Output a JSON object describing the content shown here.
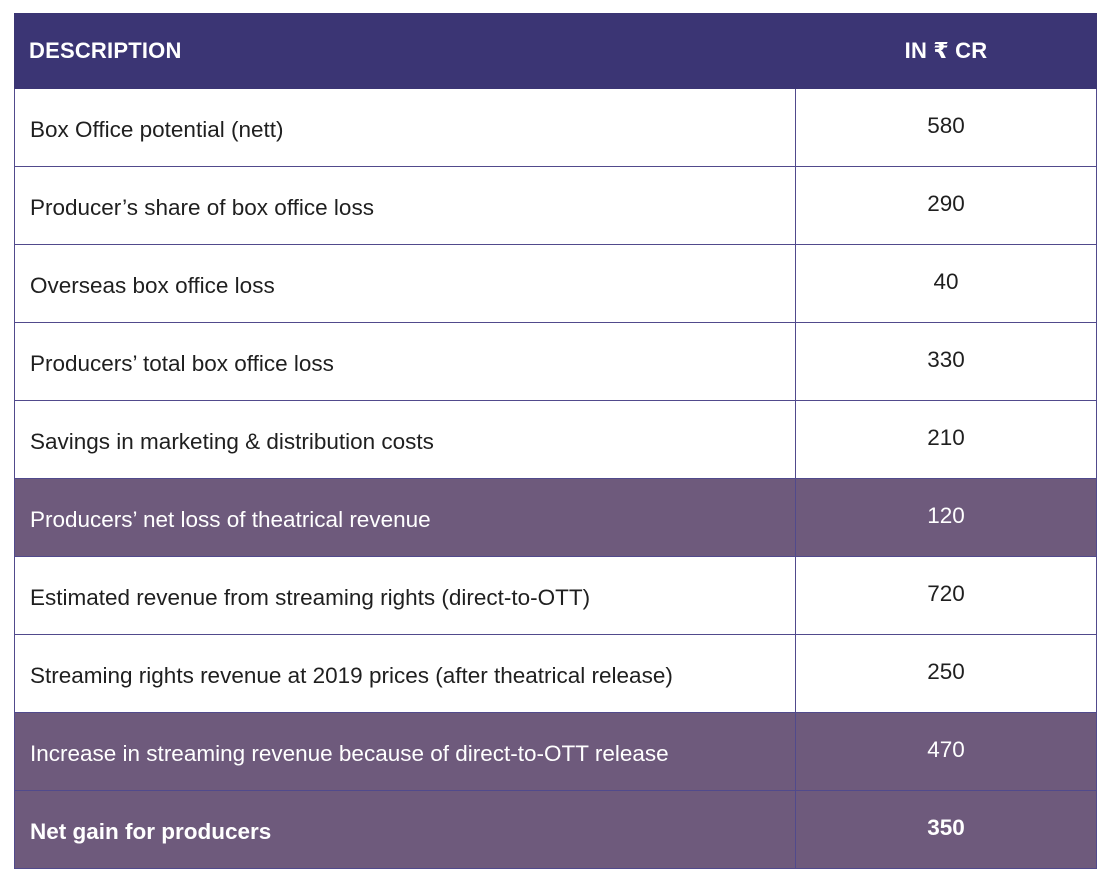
{
  "table": {
    "headers": {
      "description": "DESCRIPTION",
      "value": "IN ₹ CR"
    },
    "rows": [
      {
        "description": "Box Office potential (nett)",
        "value": "580",
        "highlight": false,
        "bold": false
      },
      {
        "description": "Producer’s share of box office loss",
        "value": "290",
        "highlight": false,
        "bold": false
      },
      {
        "description": "Overseas box office loss",
        "value": "40",
        "highlight": false,
        "bold": false
      },
      {
        "description": "Producers’ total box office loss",
        "value": "330",
        "highlight": false,
        "bold": false
      },
      {
        "description": "Savings in marketing & distribution costs",
        "value": "210",
        "highlight": false,
        "bold": false
      },
      {
        "description": "Producers’ net loss of theatrical revenue",
        "value": "120",
        "highlight": true,
        "bold": false
      },
      {
        "description": "Estimated revenue from streaming rights (direct-to-OTT)",
        "value": "720",
        "highlight": false,
        "bold": false
      },
      {
        "description": "Streaming rights revenue at 2019 prices (after theatrical release)",
        "value": "250",
        "highlight": false,
        "bold": false
      },
      {
        "description": "Increase in streaming revenue because of direct-to-OTT release",
        "value": "470",
        "highlight": true,
        "bold": false
      },
      {
        "description": "Net gain for producers",
        "value": "350",
        "highlight": true,
        "bold": true
      }
    ]
  },
  "colors": {
    "header_bg": "#3b3574",
    "highlight_bg": "#6e5a7c",
    "border": "#514a8c"
  }
}
